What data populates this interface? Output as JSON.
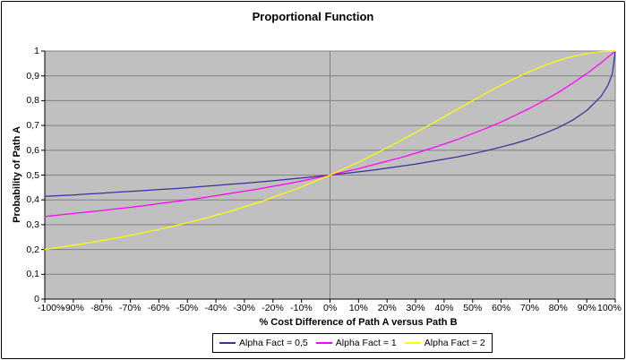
{
  "title": "Proportional Function",
  "axes": {
    "x": {
      "title": "% Cost Difference of Path A versus Path B",
      "tick_labels": [
        "-100%",
        "-90%",
        "-80%",
        "-70%",
        "-60%",
        "-50%",
        "-40%",
        "-30%",
        "-20%",
        "-10%",
        "0%",
        "10%",
        "20%",
        "30%",
        "40%",
        "50%",
        "60%",
        "70%",
        "80%",
        "90%",
        "100%"
      ]
    },
    "y": {
      "title": "Probability of Path A",
      "tick_labels": [
        "1",
        "0,9",
        "0,8",
        "0,7",
        "0,6",
        "0,5",
        "0,4",
        "0,3",
        "0,2",
        "0,1",
        "0"
      ]
    }
  },
  "legend": {
    "items": [
      {
        "label": "Alpha Fact = 0,5",
        "color": "#333399"
      },
      {
        "label": "Alpha Fact = 1",
        "color": "#FF00FF"
      },
      {
        "label": "Alpha Fact = 2",
        "color": "#FFFF00"
      }
    ]
  },
  "colors": {
    "plot_background": "#C0C0C0",
    "gridline": "#808080",
    "axis": "#000000",
    "chart_background": "#FFFFFF",
    "series_navy": "#333399",
    "series_magenta": "#FF00FF",
    "series_yellow": "#FFFF00"
  },
  "chart_data": {
    "type": "line",
    "title": "Proportional Function",
    "xlabel": "% Cost Difference of Path A versus Path B",
    "ylabel": "Probability of Path A",
    "xlim": [
      -100,
      100
    ],
    "ylim": [
      0,
      1
    ],
    "x_tick_step_percent": 10,
    "y_tick_step": 0.1,
    "grid": "horizontal-plus-zero-vertical",
    "legend_position": "bottom",
    "plot_background": "#C0C0C0",
    "x": [
      -100,
      -95,
      -90,
      -85,
      -80,
      -75,
      -70,
      -65,
      -60,
      -55,
      -50,
      -45,
      -40,
      -35,
      -30,
      -25,
      -20,
      -15,
      -10,
      -5,
      0,
      5,
      10,
      15,
      20,
      25,
      30,
      35,
      40,
      45,
      50,
      55,
      60,
      65,
      70,
      75,
      80,
      85,
      90,
      95,
      97.5,
      99,
      100
    ],
    "series": [
      {
        "name": "Alpha Fact = 0,5",
        "alpha_factor": 0.5,
        "color": "#333399",
        "values": [
          0.414,
          0.417,
          0.42,
          0.424,
          0.427,
          0.431,
          0.434,
          0.438,
          0.442,
          0.445,
          0.449,
          0.454,
          0.458,
          0.463,
          0.467,
          0.472,
          0.477,
          0.483,
          0.488,
          0.494,
          0.5,
          0.506,
          0.513,
          0.52,
          0.528,
          0.536,
          0.544,
          0.554,
          0.564,
          0.574,
          0.586,
          0.599,
          0.613,
          0.628,
          0.646,
          0.667,
          0.691,
          0.721,
          0.76,
          0.817,
          0.863,
          0.909,
          1.0
        ]
      },
      {
        "name": "Alpha Fact = 1",
        "alpha_factor": 1,
        "color": "#FF00FF",
        "values": [
          0.333,
          0.339,
          0.345,
          0.351,
          0.357,
          0.364,
          0.37,
          0.377,
          0.385,
          0.392,
          0.4,
          0.408,
          0.417,
          0.426,
          0.435,
          0.444,
          0.455,
          0.465,
          0.476,
          0.488,
          0.5,
          0.513,
          0.526,
          0.541,
          0.556,
          0.571,
          0.588,
          0.606,
          0.625,
          0.645,
          0.667,
          0.69,
          0.714,
          0.741,
          0.769,
          0.8,
          0.833,
          0.87,
          0.909,
          0.952,
          0.976,
          0.99,
          1.0
        ]
      },
      {
        "name": "Alpha Fact = 2",
        "alpha_factor": 2,
        "color": "#FFFF00",
        "values": [
          0.2,
          0.208,
          0.217,
          0.226,
          0.236,
          0.246,
          0.257,
          0.269,
          0.281,
          0.294,
          0.308,
          0.322,
          0.338,
          0.354,
          0.372,
          0.39,
          0.41,
          0.431,
          0.452,
          0.476,
          0.5,
          0.526,
          0.552,
          0.581,
          0.61,
          0.64,
          0.671,
          0.703,
          0.735,
          0.768,
          0.8,
          0.832,
          0.862,
          0.891,
          0.917,
          0.941,
          0.962,
          0.978,
          0.99,
          0.998,
          0.999,
          1.0,
          1.0
        ]
      }
    ]
  }
}
